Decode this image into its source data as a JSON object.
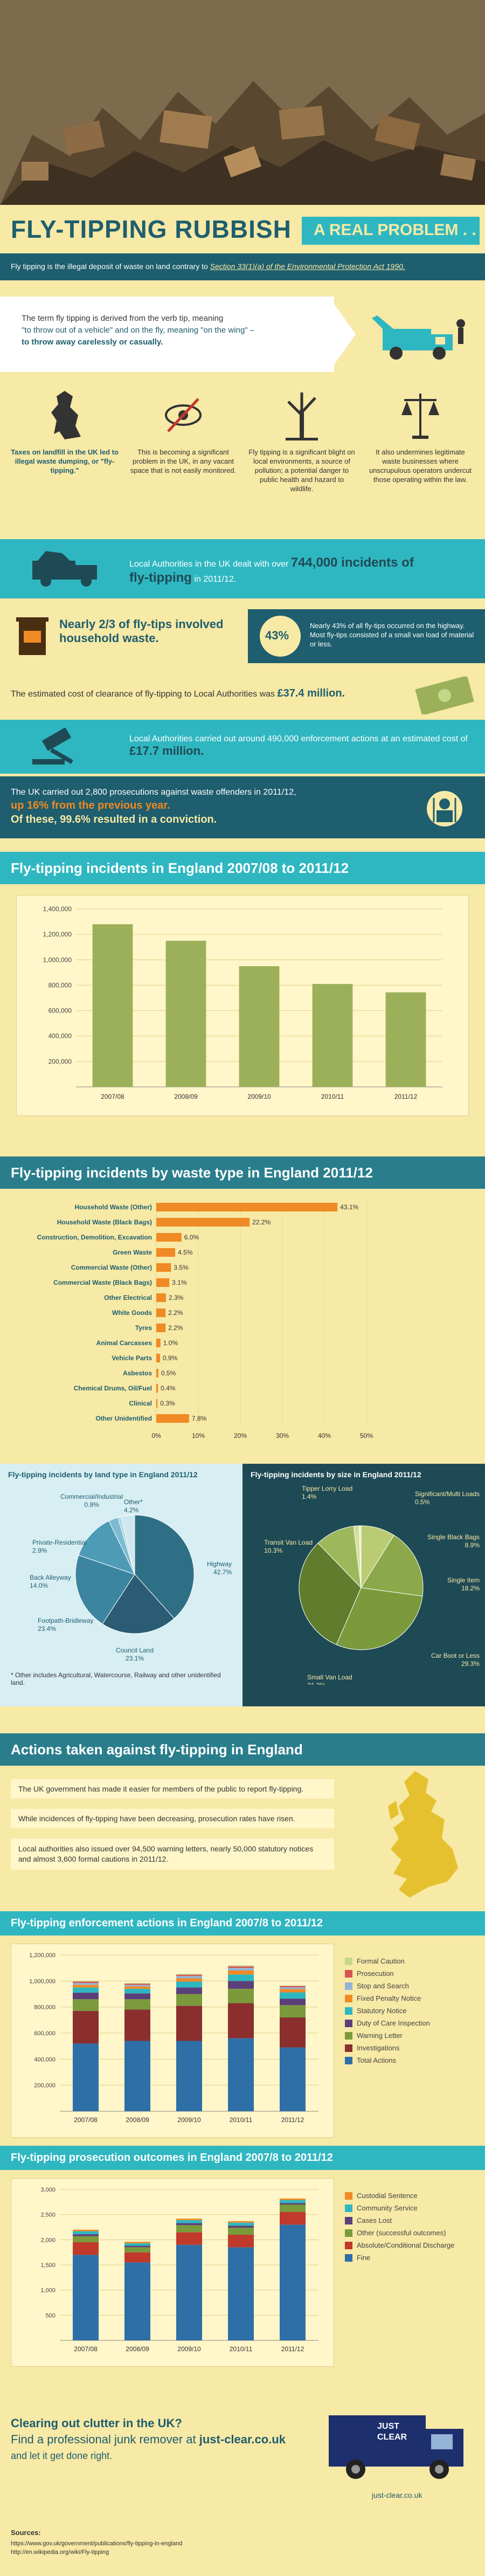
{
  "header": {
    "title": "FLY-TIPPING RUBBISH",
    "subtitle": "A REAL PROBLEM . . ."
  },
  "definition": {
    "text": "Fly tipping is the illegal deposit of waste on land contrary to",
    "link": "Section 33(1)(a) of the Environmental Protection Act 1990."
  },
  "etymology": {
    "line1": "The term fly tipping is derived from the verb tip, meaning",
    "line2": "\"to throw out of a vehicle\" and on the fly, meaning \"on the wing\" –",
    "line3": "to throw away carelessly or casually."
  },
  "facts": [
    {
      "icon": "uk-map-icon",
      "text": "Taxes on landfill in the UK led to illegal waste dumping, or \"fly-tipping.\""
    },
    {
      "icon": "eye-slash-icon",
      "text": "This is becoming a significant problem in the UK, in any vacant space that is not easily monitored."
    },
    {
      "icon": "dead-tree-icon",
      "text": "Fly tipping is a significant blight on local environments, a source of pollution; a potential danger to public health and hazard to wildlife."
    },
    {
      "icon": "scales-icon",
      "text": "It also undermines legitimate waste businesses where unscrupulous operators undercut those operating within the law."
    }
  ],
  "stats": {
    "incidents_text": "Local Authorities in the UK dealt with over",
    "incidents_value": "744,000 incidents of",
    "incidents_tail": "fly-tipping",
    "incidents_year": "in 2011/12.",
    "household_text": "Nearly 2/3 of fly-tips involved household waste.",
    "highway_pct": "43%",
    "highway_text": "Nearly 43% of all fly-tips occurred on the highway. Most fly-tips consisted of a small van load of material or less.",
    "cost_text": "The estimated cost of clearance of fly-tipping to Local Authorities was",
    "cost_value": "£37.4 million.",
    "enforcement_text": "Local Authorities carried out around 490,000 enforcement actions at an estimated cost of",
    "enforcement_value": "£17.7 million.",
    "prosecution_text": "The UK carried out 2,800 prosecutions against waste offenders in 2011/12,",
    "prosecution_up": "up 16% from the previous year.",
    "conviction_text": "Of these, 99.6% resulted in a conviction."
  },
  "sections": {
    "incidents_title": "Fly-tipping incidents in England 2007/08 to 2011/12",
    "waste_title": "Fly-tipping incidents by waste type in England 2011/12",
    "land_title": "Fly-tipping incidents by land type in England 2011/12",
    "size_title": "Fly-tipping incidents by size in England 2011/12",
    "actions_title": "Actions taken against fly-tipping in England",
    "enforcement_title": "Fly-tipping enforcement actions in England 2007/8 to 2011/12",
    "prosecution_title": "Fly-tipping prosecution outcomes in England 2007/8 to 2011/12"
  },
  "actions": [
    "The UK government has made it easier for members of the public to report fly-tipping.",
    "While incidences of fly-tipping have been decreasing, prosecution rates have risen.",
    "Local authorities also issued over 94,500 warning letters, nearly 50,000 statutory notices and almost 3,600 formal cautions in 2011/12."
  ],
  "land_footnote": "* Other includes Agricultural, Watercourse, Railway and other unidentified land.",
  "footer": {
    "cta1": "Clearing out clutter in the UK?",
    "cta2": "Find a professional junk remover at",
    "brand": "just-clear.co.uk",
    "cta3": "and let it get done right.",
    "logo_line1": "JUST",
    "logo_line2": "CLEAR",
    "site": "just-clear.co.uk",
    "sources_label": "Sources:",
    "source1": "https://www.gov.uk/government/publications/fly-tipping-in-england",
    "source2": "http://en.wikipedia.org/wiki/Fly-tipping"
  },
  "colors": {
    "teal": "#2FB7C1",
    "dark_teal": "#1E5E6E",
    "olive": "#9CB05A",
    "orange": "#F08A24",
    "yellow_bg": "#F7E9A6",
    "red": "#C0392B"
  },
  "chart_data": [
    {
      "type": "bar",
      "title": "Fly-tipping incidents in England 2007/08 to 2011/12",
      "categories": [
        "2007/08",
        "2008/09",
        "2009/10",
        "2010/11",
        "2011/12"
      ],
      "values": [
        1280000,
        1150000,
        950000,
        810000,
        744000
      ],
      "yticks": [
        "1,400,000",
        "1,200,000",
        "1,000,000",
        "800,000",
        "600,000",
        "400,000",
        "200,000"
      ],
      "ylim": [
        0,
        1400000
      ]
    },
    {
      "type": "bar",
      "orientation": "horizontal",
      "title": "Fly-tipping incidents by waste type in England 2011/12",
      "categories": [
        "Household Waste (Other)",
        "Household Waste (Black Bags)",
        "Construction, Demolition, Excavation",
        "Green Waste",
        "Commercial Waste (Other)",
        "Commercial Waste (Black Bags)",
        "Other Electrical",
        "White Goods",
        "Tyres",
        "Animal Carcasses",
        "Vehicle Parts",
        "Asbestos",
        "Chemical Drums, Oil/Fuel",
        "Clinical",
        "Other Unidentified"
      ],
      "values": [
        43.1,
        22.2,
        6.0,
        4.5,
        3.5,
        3.1,
        2.3,
        2.2,
        2.2,
        1.0,
        0.9,
        0.5,
        0.4,
        0.3,
        7.8
      ],
      "labels": [
        "43.1%",
        "22.2%",
        "6.0%",
        "4.5%",
        "3.5%",
        "3.1%",
        "2.3%",
        "2.2%",
        "2.2%",
        "1.0%",
        "0.9%",
        "0.5%",
        "0.4%",
        "0.3%",
        "7.8%"
      ],
      "xticks": [
        "0%",
        "10%",
        "20%",
        "30%",
        "40%",
        "50%"
      ],
      "xlim": [
        0,
        50
      ]
    },
    {
      "type": "pie",
      "title": "Fly-tipping incidents by land type in England 2011/12",
      "slices": [
        {
          "name": "Highway",
          "value": 42.7,
          "label": "42.7%",
          "color": "#2E6F86"
        },
        {
          "name": "Council Land",
          "value": 23.1,
          "label": "23.1%",
          "color": "#2A5C73"
        },
        {
          "name": "Footpath-Bridleway",
          "value": 23.4,
          "label": "23.4%",
          "color": "#3B85A0"
        },
        {
          "name": "Back Alleyway",
          "value": 14.0,
          "label": "14.0%",
          "color": "#4E9BB6"
        },
        {
          "name": "Private-Residential",
          "value": 2.9,
          "label": "2.9%",
          "color": "#7DBBD0"
        },
        {
          "name": "Commercial/Industrial",
          "value": 0.9,
          "label": "0.9%",
          "color": "#A9D3E0"
        },
        {
          "name": "Other*",
          "value": 4.2,
          "label": "4.2%",
          "color": "#CFE7EE"
        }
      ]
    },
    {
      "type": "pie",
      "title": "Fly-tipping incidents by size in England 2011/12",
      "slices": [
        {
          "name": "Single Black Bags",
          "value": 8.9,
          "label": "8.9%",
          "color": "#B9CC73"
        },
        {
          "name": "Single Item",
          "value": 18.2,
          "label": "18.2%",
          "color": "#8BA84A"
        },
        {
          "name": "Car Boot or Less",
          "value": 29.3,
          "label": "29.3%",
          "color": "#7A9A3C"
        },
        {
          "name": "Small Van Load",
          "value": 31.2,
          "label": "31.2%",
          "color": "#5F7D2C"
        },
        {
          "name": "Transit Van Load",
          "value": 10.3,
          "label": "10.3%",
          "color": "#9DB85A"
        },
        {
          "name": "Tipper Lorry Load",
          "value": 1.4,
          "label": "1.4%",
          "color": "#D4DF9C"
        },
        {
          "name": "Significant/Multi Loads",
          "value": 0.5,
          "label": "0.5%",
          "color": "#E8EFC4"
        }
      ]
    },
    {
      "type": "bar",
      "stacked": true,
      "title": "Fly-tipping enforcement actions in England 2007/8 to 2011/12",
      "categories": [
        "2007/08",
        "2008/09",
        "2009/10",
        "2010/11",
        "2011/12"
      ],
      "yticks": [
        "1,200,000",
        "1,000,000",
        "800,000",
        "600,000",
        "400,000",
        "200,000"
      ],
      "ylim": [
        0,
        1200000
      ],
      "series": [
        {
          "name": "Total Actions",
          "color": "#2E6FA8",
          "values": [
            520000,
            540000,
            540000,
            560000,
            490000
          ]
        },
        {
          "name": "Investigations",
          "color": "#8B2E2E",
          "values": [
            250000,
            240000,
            270000,
            270000,
            230000
          ]
        },
        {
          "name": "Warning Letter",
          "color": "#7A9A3C",
          "values": [
            90000,
            80000,
            90000,
            110000,
            94500
          ]
        },
        {
          "name": "Duty of Care Inspection",
          "color": "#5B3F7A",
          "values": [
            50000,
            45000,
            50000,
            60000,
            50000
          ]
        },
        {
          "name": "Statutory Notice",
          "color": "#2FB7C1",
          "values": [
            40000,
            35000,
            45000,
            50000,
            48000
          ]
        },
        {
          "name": "Fixed Penalty Notice",
          "color": "#F08A24",
          "values": [
            20000,
            18000,
            25000,
            30000,
            25000
          ]
        },
        {
          "name": "Stop and Search",
          "color": "#95B4D6",
          "values": [
            15000,
            12000,
            18000,
            20000,
            14000
          ]
        },
        {
          "name": "Prosecution",
          "color": "#D9534F",
          "values": [
            10000,
            9000,
            10000,
            12000,
            10000
          ]
        },
        {
          "name": "Formal Caution",
          "color": "#C5D88A",
          "values": [
            5000,
            5000,
            7000,
            8000,
            3600
          ]
        }
      ]
    },
    {
      "type": "bar",
      "stacked": true,
      "title": "Fly-tipping prosecution outcomes in England 2007/8 to 2011/12",
      "categories": [
        "2007/08",
        "2008/09",
        "2009/10",
        "2010/11",
        "2011/12"
      ],
      "yticks": [
        "3,000",
        "2,500",
        "2,000",
        "1,500",
        "1,000",
        "500"
      ],
      "ylim": [
        0,
        3000
      ],
      "series": [
        {
          "name": "Fine",
          "color": "#2E6FA8",
          "values": [
            1700,
            1550,
            1900,
            1850,
            2300
          ]
        },
        {
          "name": "Absolute/Conditional Discharge",
          "color": "#C0392B",
          "values": [
            250,
            200,
            250,
            250,
            250
          ]
        },
        {
          "name": "Other (successful outcomes)",
          "color": "#7A9A3C",
          "values": [
            120,
            100,
            140,
            140,
            150
          ]
        },
        {
          "name": "Cases Lost",
          "color": "#5B3F7A",
          "values": [
            40,
            30,
            40,
            40,
            30
          ]
        },
        {
          "name": "Community Service",
          "color": "#2FB7C1",
          "values": [
            60,
            50,
            60,
            60,
            60
          ]
        },
        {
          "name": "Custodial Sentence",
          "color": "#F08A24",
          "values": [
            30,
            30,
            30,
            30,
            30
          ]
        }
      ]
    }
  ]
}
